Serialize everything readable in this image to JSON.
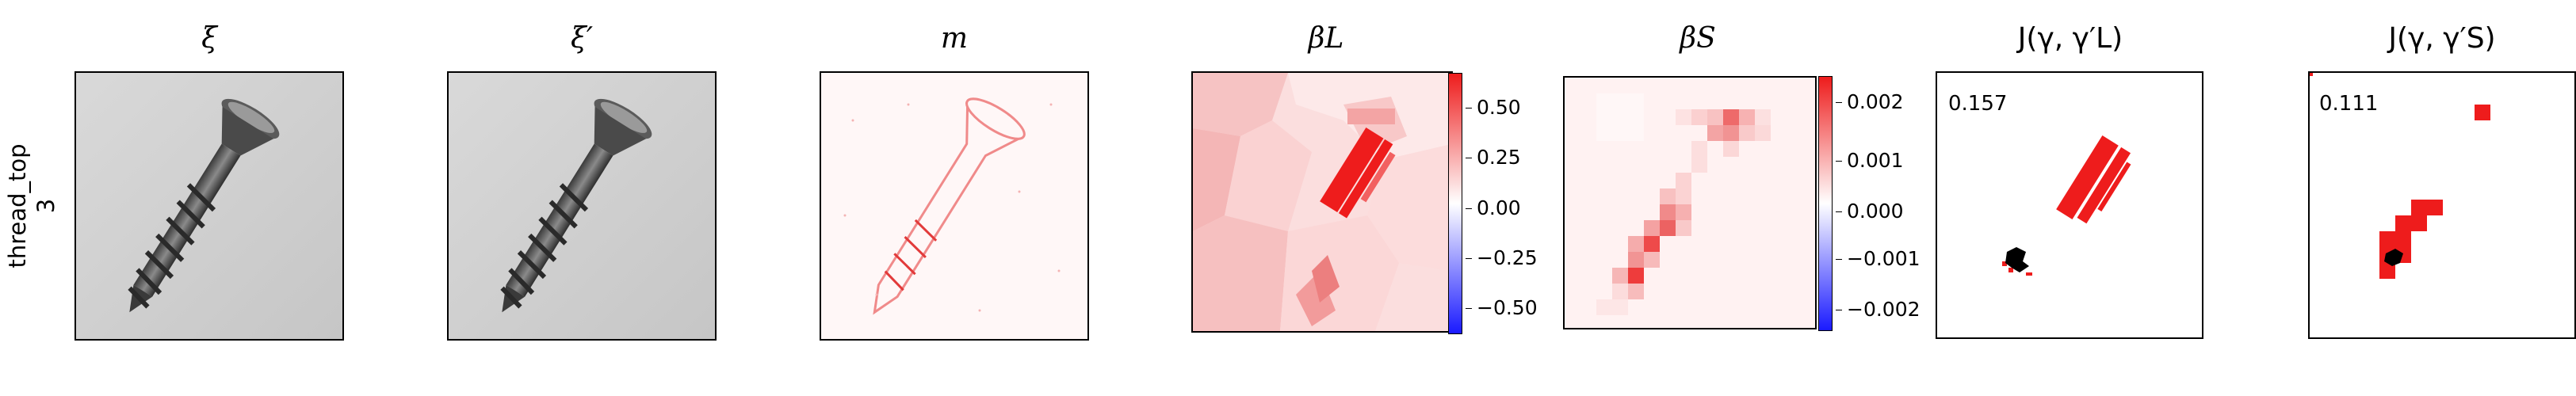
{
  "row_label": {
    "line1": "thread_top",
    "line2": "3"
  },
  "panels": [
    {
      "title": "ξ"
    },
    {
      "title": "ξ′"
    },
    {
      "title": "m"
    },
    {
      "title": "βL"
    },
    {
      "title": "βS"
    },
    {
      "title": "J(γ, γ′L)"
    },
    {
      "title": "J(γ, γ′S)"
    }
  ],
  "colorbar_L": {
    "ticks": [
      "0.50",
      "0.25",
      "0.00",
      "−0.25",
      "−0.50"
    ]
  },
  "colorbar_S": {
    "ticks": [
      "0.002",
      "0.001",
      "0.000",
      "−0.001",
      "−0.002"
    ]
  },
  "jaccard": {
    "L": "0.157",
    "S": "0.111"
  },
  "colors": {
    "positive": "#ee1c1c",
    "negative": "#1a1aff",
    "overlap": "#000000"
  }
}
